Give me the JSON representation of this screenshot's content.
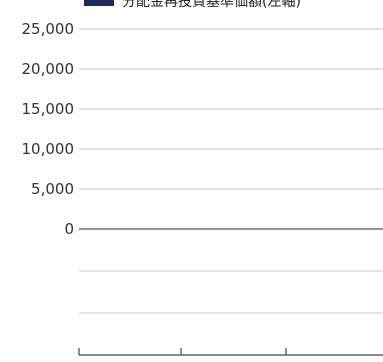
{
  "chart_data": {
    "type": "bar",
    "title": "",
    "xlabel": "",
    "ylabel": "",
    "legend": {
      "entries": [
        {
          "name": "分配金再投資基準価額(左軸)",
          "color": "#1f2a5c"
        }
      ],
      "placement": "top-right"
    },
    "y_ticks": [
      "25,000",
      "20,000",
      "15,000",
      "10,000",
      "5,000",
      "0"
    ],
    "ylim": [
      0,
      25000
    ],
    "series": [],
    "grid": true
  }
}
